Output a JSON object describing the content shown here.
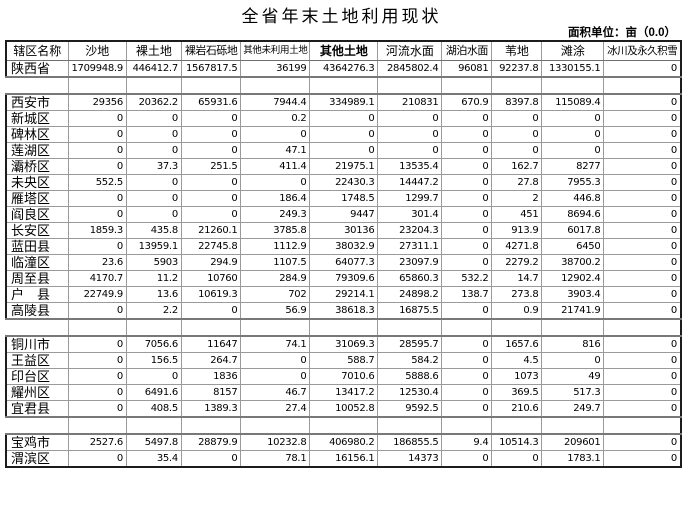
{
  "title": "全省年末土地利用现状",
  "unit_label": "面积单位：亩（0.0）",
  "table": {
    "bold_column": "其他土地",
    "columns": [
      "辖区名称",
      "沙地",
      "裸土地",
      "裸岩石砾地",
      "其他未利用土地",
      "其他土地",
      "河流水面",
      "湖泊水面",
      "苇地",
      "滩涂",
      "冰川及永久积雪"
    ],
    "rows": [
      {
        "name": "陕西省",
        "values": [
          "1709948.9",
          "446412.7",
          "1567817.5",
          "36199",
          "4364276.3",
          "2845802.4",
          "96081",
          "92237.8",
          "1330155.1",
          "0"
        ]
      },
      {
        "name": "",
        "separator": true,
        "values": [
          "",
          "",
          "",
          "",
          "",
          "",
          "",
          "",
          "",
          ""
        ]
      },
      {
        "name": "西安市",
        "values": [
          "29356",
          "20362.2",
          "65931.6",
          "7944.4",
          "334989.1",
          "210831",
          "670.9",
          "8397.8",
          "115089.4",
          "0"
        ]
      },
      {
        "name": "新城区",
        "values": [
          "0",
          "0",
          "0",
          "0.2",
          "0",
          "0",
          "0",
          "0",
          "0",
          "0"
        ]
      },
      {
        "name": "碑林区",
        "values": [
          "0",
          "0",
          "0",
          "0",
          "0",
          "0",
          "0",
          "0",
          "0",
          "0"
        ]
      },
      {
        "name": "莲湖区",
        "values": [
          "0",
          "0",
          "0",
          "47.1",
          "0",
          "0",
          "0",
          "0",
          "0",
          "0"
        ]
      },
      {
        "name": "灞桥区",
        "values": [
          "0",
          "37.3",
          "251.5",
          "411.4",
          "21975.1",
          "13535.4",
          "0",
          "162.7",
          "8277",
          "0"
        ]
      },
      {
        "name": "未央区",
        "values": [
          "552.5",
          "0",
          "0",
          "0",
          "22430.3",
          "14447.2",
          "0",
          "27.8",
          "7955.3",
          "0"
        ]
      },
      {
        "name": "雁塔区",
        "values": [
          "0",
          "0",
          "0",
          "186.4",
          "1748.5",
          "1299.7",
          "0",
          "2",
          "446.8",
          "0"
        ]
      },
      {
        "name": "阎良区",
        "values": [
          "0",
          "0",
          "0",
          "249.3",
          "9447",
          "301.4",
          "0",
          "451",
          "8694.6",
          "0"
        ]
      },
      {
        "name": "长安区",
        "values": [
          "1859.3",
          "435.8",
          "21260.1",
          "3785.8",
          "30136",
          "23204.3",
          "0",
          "913.9",
          "6017.8",
          "0"
        ]
      },
      {
        "name": "蓝田县",
        "values": [
          "0",
          "13959.1",
          "22745.8",
          "1112.9",
          "38032.9",
          "27311.1",
          "0",
          "4271.8",
          "6450",
          "0"
        ]
      },
      {
        "name": "临潼区",
        "values": [
          "23.6",
          "5903",
          "294.9",
          "1107.5",
          "64077.3",
          "23097.9",
          "0",
          "2279.2",
          "38700.2",
          "0"
        ]
      },
      {
        "name": "周至县",
        "values": [
          "4170.7",
          "11.2",
          "10760",
          "284.9",
          "79309.6",
          "65860.3",
          "532.2",
          "14.7",
          "12902.4",
          "0"
        ]
      },
      {
        "name": "户　县",
        "values": [
          "22749.9",
          "13.6",
          "10619.3",
          "702",
          "29214.1",
          "24898.2",
          "138.7",
          "273.8",
          "3903.4",
          "0"
        ]
      },
      {
        "name": "高陵县",
        "values": [
          "0",
          "2.2",
          "0",
          "56.9",
          "38618.3",
          "16875.5",
          "0",
          "0.9",
          "21741.9",
          "0"
        ]
      },
      {
        "name": "",
        "separator": true,
        "values": [
          "",
          "",
          "",
          "",
          "",
          "",
          "",
          "",
          "",
          ""
        ]
      },
      {
        "name": "铜川市",
        "values": [
          "0",
          "7056.6",
          "11647",
          "74.1",
          "31069.3",
          "28595.7",
          "0",
          "1657.6",
          "816",
          "0"
        ]
      },
      {
        "name": "王益区",
        "values": [
          "0",
          "156.5",
          "264.7",
          "0",
          "588.7",
          "584.2",
          "0",
          "4.5",
          "0",
          "0"
        ]
      },
      {
        "name": "印台区",
        "values": [
          "0",
          "0",
          "1836",
          "0",
          "7010.6",
          "5888.6",
          "0",
          "1073",
          "49",
          "0"
        ]
      },
      {
        "name": "耀州区",
        "values": [
          "0",
          "6491.6",
          "8157",
          "46.7",
          "13417.2",
          "12530.4",
          "0",
          "369.5",
          "517.3",
          "0"
        ]
      },
      {
        "name": "宜君县",
        "values": [
          "0",
          "408.5",
          "1389.3",
          "27.4",
          "10052.8",
          "9592.5",
          "0",
          "210.6",
          "249.7",
          "0"
        ]
      },
      {
        "name": "",
        "separator": true,
        "values": [
          "",
          "",
          "",
          "",
          "",
          "",
          "",
          "",
          "",
          ""
        ]
      },
      {
        "name": "宝鸡市",
        "values": [
          "2527.6",
          "5497.8",
          "28879.9",
          "10232.8",
          "406980.2",
          "186855.5",
          "9.4",
          "10514.3",
          "209601",
          "0"
        ]
      },
      {
        "name": "渭滨区",
        "values": [
          "0",
          "35.4",
          "0",
          "78.1",
          "16156.1",
          "14373",
          "0",
          "0",
          "1783.1",
          "0"
        ]
      }
    ]
  }
}
